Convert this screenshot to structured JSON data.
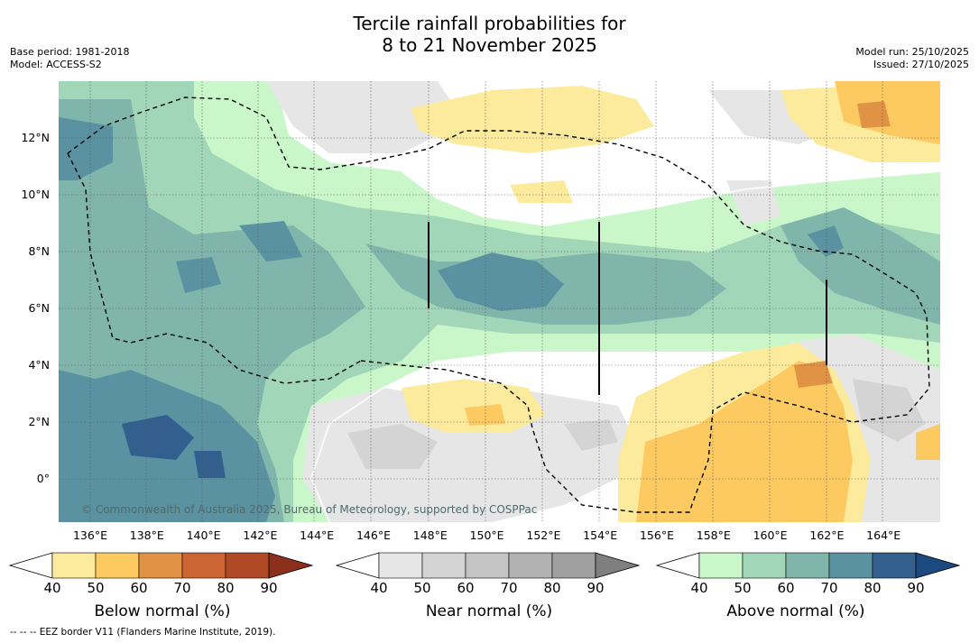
{
  "title": {
    "line1": "Tercile rainfall probabilities for",
    "line2": "8 to 21 November 2025"
  },
  "meta": {
    "base_period": "Base period: 1981-2018",
    "model": "Model: ACCESS-S2",
    "model_run": "Model run: 25/10/2025",
    "issued": "Issued: 27/10/2025"
  },
  "map": {
    "longitude_ticks": [
      "136°E",
      "138°E",
      "140°E",
      "142°E",
      "144°E",
      "146°E",
      "148°E",
      "150°E",
      "152°E",
      "154°E",
      "156°E",
      "158°E",
      "160°E",
      "162°E",
      "164°E"
    ],
    "latitude_ticks": [
      "12°N",
      "10°N",
      "8°N",
      "6°N",
      "4°N",
      "2°N",
      "0°"
    ],
    "lon_range": [
      134.0,
      166.0
    ],
    "lat_range": [
      -1.5,
      14.0
    ],
    "copyright": "© Commonwealth of Australia 2025, Bureau of Meteorology, supported by COSPPac"
  },
  "legends": {
    "below": {
      "caption": "Below normal (%)",
      "ticks": [
        "40",
        "50",
        "60",
        "70",
        "80",
        "90"
      ],
      "colors": [
        "#ffffff",
        "#fdeb9d",
        "#fdca62",
        "#e09245",
        "#cc6434",
        "#b04a26",
        "#8c2f1d"
      ]
    },
    "near": {
      "caption": "Near normal (%)",
      "ticks": [
        "40",
        "50",
        "60",
        "70",
        "80",
        "90"
      ],
      "colors": [
        "#ffffff",
        "#e6e6e6",
        "#d4d4d4",
        "#c5c5c5",
        "#b2b2b2",
        "#a0a0a0",
        "#7f7f7f"
      ]
    },
    "above": {
      "caption": "Above normal (%)",
      "ticks": [
        "40",
        "50",
        "60",
        "70",
        "80",
        "90"
      ],
      "colors": [
        "#ffffff",
        "#c9f7c9",
        "#a2d6b8",
        "#80b5ab",
        "#5a92a2",
        "#335f8f",
        "#1d4a7e"
      ]
    }
  },
  "footnote": "-- -- -- EEZ border V11 (Flanders Marine Institute, 2019)."
}
